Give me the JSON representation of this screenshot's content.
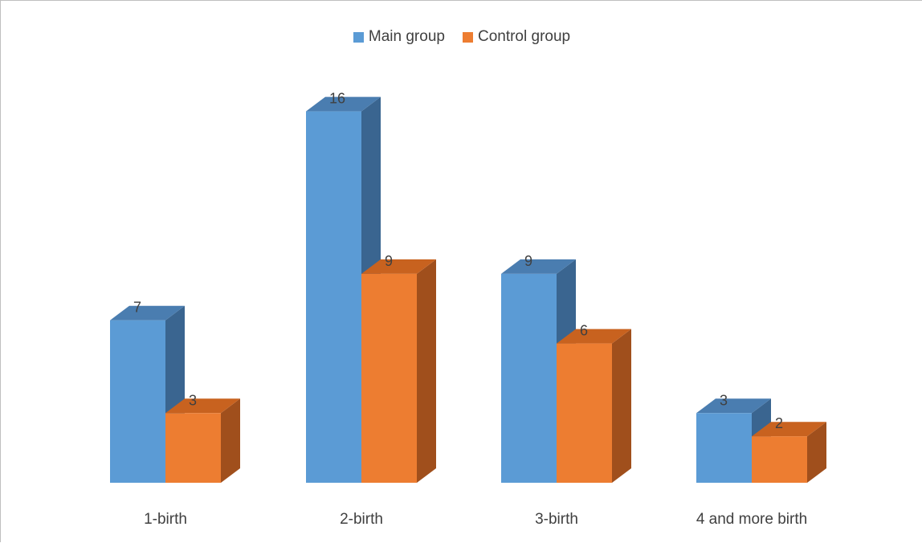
{
  "chart_data": {
    "type": "bar",
    "categories": [
      "1-birth",
      "2-birth",
      "3-birth",
      "4 and more birth"
    ],
    "series": [
      {
        "name": "Main group",
        "values": [
          7,
          16,
          9,
          3
        ],
        "color": "#5B9BD5",
        "side_color": "#3A6590",
        "top_color": "#4A7DB0"
      },
      {
        "name": "Control group",
        "values": [
          3,
          9,
          6,
          2
        ],
        "color": "#ED7D31",
        "side_color": "#A04F1C",
        "top_color": "#C8621F"
      }
    ],
    "ylim": [
      0,
      16
    ],
    "grid": false,
    "legend_position": "top-center",
    "style": "3d-column"
  }
}
